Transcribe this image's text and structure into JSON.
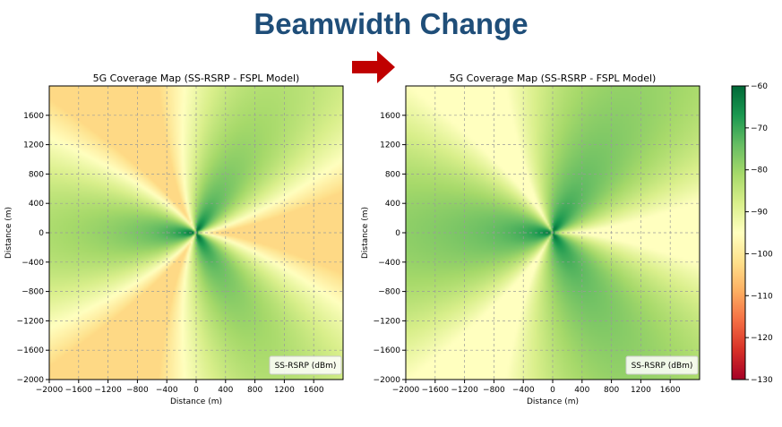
{
  "headline": "Beamwidth Change",
  "colorbar": {
    "ticks": [
      -60,
      -70,
      -80,
      -90,
      -100,
      -110,
      -120,
      -130
    ],
    "range": [
      -130,
      -60
    ],
    "colormap": [
      "#a50026",
      "#d73027",
      "#f46d43",
      "#fdae61",
      "#fee08b",
      "#ffffbf",
      "#d9ef8b",
      "#a6d96a",
      "#66bd63",
      "#1a9850",
      "#006837"
    ]
  },
  "chart_data": [
    {
      "type": "heatmap",
      "title": "5G Coverage Map (SS-RSRP - FSPL Model)",
      "xlabel": "Distance (m)",
      "ylabel": "Distance (m)",
      "xlim": [
        -2000,
        2000
      ],
      "ylim": [
        -2000,
        2000
      ],
      "xticks": [
        "−2000",
        "−1600",
        "−1200",
        "−800",
        "−400",
        "0",
        "400",
        "800",
        "1200",
        "1600"
      ],
      "yticks": [
        "1600",
        "1200",
        "800",
        "400",
        "0",
        "−400",
        "−800",
        "−1200",
        "−1600",
        "−2000"
      ],
      "grid": true,
      "legend": "SS-RSRP (dBm)",
      "legend_position": "bottom-right",
      "value_range": [
        -103,
        -61
      ],
      "beamwidth": "narrow",
      "beam_directions_deg": [
        60,
        -60,
        180
      ]
    },
    {
      "type": "heatmap",
      "title": "5G Coverage Map (SS-RSRP - FSPL Model)",
      "xlabel": "Distance (m)",
      "ylabel": "Distance (m)",
      "xlim": [
        -2000,
        2000
      ],
      "ylim": [
        -2000,
        2000
      ],
      "xticks": [
        "−2000",
        "−1600",
        "−1200",
        "−800",
        "−400",
        "0",
        "400",
        "800",
        "1200",
        "1600"
      ],
      "yticks": [
        "1600",
        "1200",
        "800",
        "400",
        "0",
        "−400",
        "−800",
        "−1200",
        "−1600",
        "−2000"
      ],
      "grid": true,
      "legend": "SS-RSRP (dBm)",
      "legend_position": "bottom-right",
      "value_range": [
        -95,
        -62
      ],
      "beamwidth": "wide",
      "beam_directions_deg": [
        60,
        -60,
        180
      ]
    }
  ]
}
